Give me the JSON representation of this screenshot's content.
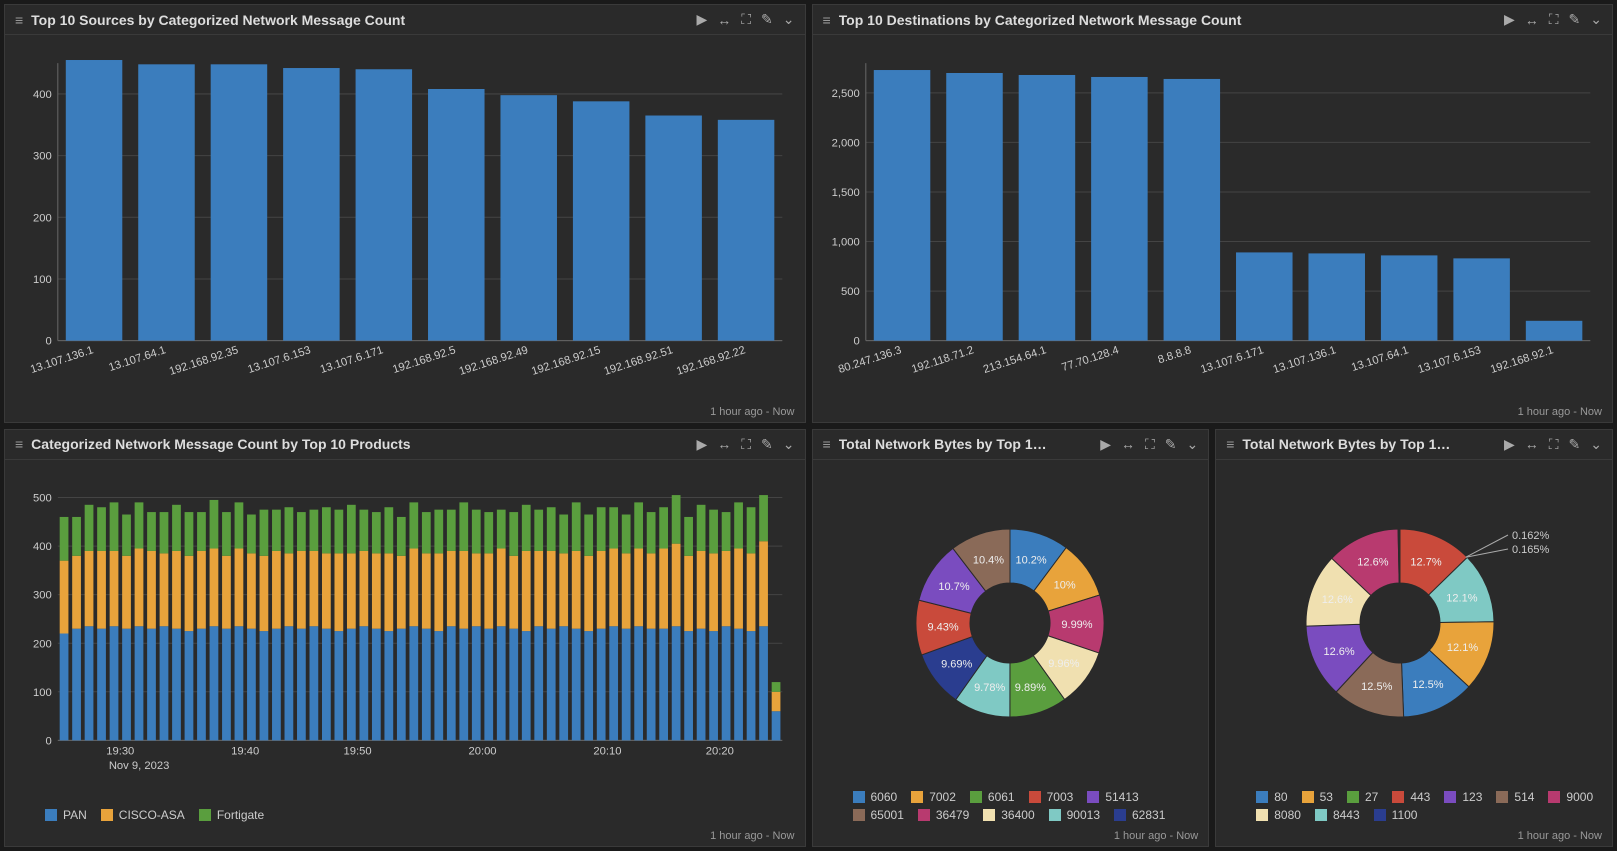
{
  "colors": {
    "bar_blue": "#3b7dbd",
    "orange": "#e8a33b",
    "green": "#5a9e3e",
    "grid": "#444444",
    "panel_bg": "#2a2a2a",
    "text": "#cccccc"
  },
  "footer_text": "1 hour ago - Now",
  "panels": {
    "sources": {
      "title": "Top 10 Sources by Categorized Network Message Count",
      "chart": {
        "type": "bar",
        "bar_color": "#3b7dbd",
        "ylim": [
          0,
          450
        ],
        "yticks": [
          0,
          100,
          200,
          300,
          400
        ],
        "categories": [
          "13.107.136.1",
          "13.107.64.1",
          "192.168.92.35",
          "13.107.6.153",
          "13.107.6.171",
          "192.168.92.5",
          "192.168.92.49",
          "192.168.92.15",
          "192.168.92.51",
          "192.168.92.22"
        ],
        "values": [
          455,
          448,
          448,
          442,
          440,
          408,
          398,
          388,
          365,
          358
        ]
      }
    },
    "destinations": {
      "title": "Top 10 Destinations by Categorized Network Message Count",
      "chart": {
        "type": "bar",
        "bar_color": "#3b7dbd",
        "ylim": [
          0,
          2800
        ],
        "yticks": [
          0,
          500,
          1000,
          1500,
          2000,
          2500
        ],
        "categories": [
          "80.247.136.3",
          "192.118.71.2",
          "213.154.64.1",
          "77.70.128.4",
          "8.8.8.8",
          "13.107.6.171",
          "13.107.136.1",
          "13.107.64.1",
          "13.107.6.153",
          "192.168.92.1"
        ],
        "values": [
          2730,
          2700,
          2680,
          2660,
          2640,
          890,
          880,
          860,
          830,
          200
        ]
      }
    },
    "products": {
      "title": "Categorized Network Message Count by Top 10 Products",
      "chart": {
        "type": "stacked-bar",
        "ylim": [
          0,
          500
        ],
        "yticks": [
          0,
          100,
          200,
          300,
          400,
          500
        ],
        "x_ticks": [
          "19:30",
          "19:40",
          "19:50",
          "20:00",
          "20:10",
          "20:20"
        ],
        "x_sub": "Nov 9, 2023",
        "series": [
          {
            "name": "PAN",
            "color": "#3b7dbd"
          },
          {
            "name": "CISCO-ASA",
            "color": "#e8a33b"
          },
          {
            "name": "Fortigate",
            "color": "#5a9e3e"
          }
        ],
        "bars": [
          [
            220,
            150,
            90
          ],
          [
            230,
            150,
            80
          ],
          [
            235,
            155,
            95
          ],
          [
            230,
            160,
            90
          ],
          [
            235,
            155,
            100
          ],
          [
            230,
            150,
            85
          ],
          [
            235,
            160,
            95
          ],
          [
            230,
            160,
            80
          ],
          [
            235,
            150,
            85
          ],
          [
            230,
            160,
            95
          ],
          [
            225,
            155,
            90
          ],
          [
            230,
            160,
            80
          ],
          [
            235,
            160,
            100
          ],
          [
            230,
            150,
            90
          ],
          [
            235,
            160,
            95
          ],
          [
            230,
            155,
            80
          ],
          [
            225,
            155,
            95
          ],
          [
            230,
            160,
            85
          ],
          [
            235,
            150,
            95
          ],
          [
            230,
            160,
            80
          ],
          [
            235,
            155,
            85
          ],
          [
            230,
            155,
            95
          ],
          [
            225,
            160,
            90
          ],
          [
            230,
            155,
            100
          ],
          [
            235,
            155,
            85
          ],
          [
            230,
            155,
            85
          ],
          [
            225,
            160,
            95
          ],
          [
            230,
            150,
            80
          ],
          [
            235,
            160,
            95
          ],
          [
            230,
            155,
            85
          ],
          [
            225,
            160,
            90
          ],
          [
            235,
            155,
            85
          ],
          [
            230,
            160,
            100
          ],
          [
            235,
            150,
            90
          ],
          [
            230,
            155,
            85
          ],
          [
            235,
            160,
            80
          ],
          [
            230,
            150,
            90
          ],
          [
            225,
            165,
            95
          ],
          [
            235,
            155,
            85
          ],
          [
            230,
            160,
            90
          ],
          [
            235,
            150,
            80
          ],
          [
            230,
            160,
            100
          ],
          [
            225,
            155,
            85
          ],
          [
            230,
            160,
            90
          ],
          [
            235,
            160,
            85
          ],
          [
            230,
            155,
            80
          ],
          [
            235,
            160,
            95
          ],
          [
            230,
            155,
            85
          ],
          [
            230,
            165,
            85
          ],
          [
            235,
            170,
            100
          ],
          [
            225,
            155,
            80
          ],
          [
            230,
            160,
            95
          ],
          [
            225,
            160,
            90
          ],
          [
            235,
            155,
            80
          ],
          [
            230,
            165,
            95
          ],
          [
            225,
            160,
            95
          ],
          [
            235,
            175,
            95
          ],
          [
            60,
            40,
            20
          ]
        ]
      }
    },
    "donut1": {
      "title": "Total Network Bytes by Top 1…",
      "chart": {
        "type": "donut",
        "slices": [
          {
            "label": "6060",
            "value": 10.2,
            "color": "#3b7dbd",
            "text": "10.2%"
          },
          {
            "label": "7002",
            "value": 10.0,
            "color": "#e8a33b",
            "text": "10%"
          },
          {
            "label": "36479",
            "value": 9.99,
            "color": "#b83a6f",
            "text": "9.99%"
          },
          {
            "label": "36400",
            "value": 9.96,
            "color": "#f0e0b0",
            "text": "9.96%"
          },
          {
            "label": "6061",
            "value": 9.89,
            "color": "#5a9e3e",
            "text": "9.89%"
          },
          {
            "label": "90013",
            "value": 9.78,
            "color": "#7fc9c4",
            "text": "9.78%"
          },
          {
            "label": "62831",
            "value": 9.69,
            "color": "#2a3d8f",
            "text": "9.69%"
          },
          {
            "label": "7003",
            "value": 9.43,
            "color": "#c94a3b",
            "text": "9.43%"
          },
          {
            "label": "51413",
            "value": 10.7,
            "color": "#7a4cbf",
            "text": "10.7%"
          },
          {
            "label": "65001",
            "value": 10.4,
            "color": "#8a6a58",
            "text": "10.4%"
          }
        ],
        "legend_order": [
          "6060",
          "7002",
          "6061",
          "7003",
          "51413",
          "65001",
          "36479",
          "36400",
          "90013",
          "62831"
        ]
      }
    },
    "donut2": {
      "title": "Total Network Bytes by Top 1…",
      "chart": {
        "type": "donut",
        "callouts": [
          "0.162%",
          "0.165%"
        ],
        "slices": [
          {
            "label": "443",
            "value": 12.7,
            "color": "#c94a3b",
            "text": "12.7%"
          },
          {
            "label": "8443",
            "value": 12.1,
            "color": "#7fc9c4",
            "text": "12.1%"
          },
          {
            "label": "53",
            "value": 12.1,
            "color": "#e8a33b",
            "text": "12.1%"
          },
          {
            "label": "80",
            "value": 12.5,
            "color": "#3b7dbd",
            "text": "12.5%"
          },
          {
            "label": "514",
            "value": 12.5,
            "color": "#8a6a58",
            "text": "12.5%"
          },
          {
            "label": "123",
            "value": 12.6,
            "color": "#7a4cbf",
            "text": "12.6%"
          },
          {
            "label": "8080",
            "value": 12.6,
            "color": "#f0e0b0",
            "text": "12.6%"
          },
          {
            "label": "9000",
            "value": 12.6,
            "color": "#b83a6f",
            "text": "12.6%"
          },
          {
            "label": "27",
            "value": 0.162,
            "color": "#5a9e3e",
            "text": "0.162%"
          },
          {
            "label": "1100",
            "value": 0.165,
            "color": "#2a3d8f",
            "text": "0.165%"
          }
        ],
        "legend_order": [
          "80",
          "53",
          "27",
          "443",
          "123",
          "514",
          "9000",
          "8080",
          "8443",
          "1100"
        ]
      }
    }
  }
}
